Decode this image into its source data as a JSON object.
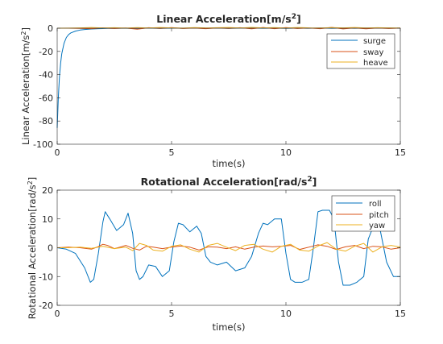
{
  "chart_data": [
    {
      "type": "line",
      "title": "Linear Acceleration[m/s",
      "title_sup": "2",
      "title_end": "]",
      "xlabel": "time(s)",
      "ylabel": "Linear Acceleration[m/s",
      "ylabel_sup": "2",
      "ylabel_end": "]",
      "xlim": [
        0,
        15
      ],
      "ylim": [
        -100,
        0
      ],
      "xticks": [
        "0",
        "5",
        "10",
        "15"
      ],
      "yticks": [
        "-100",
        "-80",
        "-60",
        "-40",
        "-20",
        "0"
      ],
      "legend_placement": "top-right",
      "grid": false,
      "series": [
        {
          "name": "surge",
          "color": "#0072BD",
          "x": [
            0,
            0.05,
            0.1,
            0.15,
            0.2,
            0.3,
            0.4,
            0.5,
            0.6,
            0.8,
            1.0,
            1.2,
            1.5,
            1.8,
            2.2,
            2.6,
            3.0,
            3.5,
            4.0,
            4.5,
            5.0,
            5.5,
            6.0,
            6.5,
            7.0,
            7.5,
            8.0,
            8.5,
            9.0,
            9.5,
            10.0,
            10.5,
            11.0,
            11.5,
            12.0,
            12.5,
            13.0,
            13.5,
            14.0,
            14.5,
            15.0
          ],
          "y": [
            -86,
            -60,
            -42,
            -30,
            -22,
            -13,
            -8,
            -5.5,
            -4,
            -2.5,
            -1.6,
            -1.1,
            -0.7,
            -0.4,
            -0.2,
            -0.1,
            -0.1,
            -0.3,
            0.1,
            -0.2,
            0.1,
            -0.1,
            0.2,
            -0.1,
            0.1,
            -0.2,
            0.1,
            0.2,
            -0.1,
            0.1,
            -0.2,
            0.1,
            -0.1,
            0.2,
            -0.1,
            0.1,
            -0.1,
            0.1,
            0,
            0.1,
            0
          ]
        },
        {
          "name": "sway",
          "color": "#D95319",
          "x": [
            0,
            0.5,
            1.0,
            1.5,
            2.0,
            2.5,
            3.0,
            3.5,
            4.0,
            4.5,
            5.0,
            5.5,
            6.0,
            6.5,
            7.0,
            7.5,
            8.0,
            8.5,
            9.0,
            9.5,
            10.0,
            10.5,
            11.0,
            11.5,
            12.0,
            12.5,
            13.0,
            13.5,
            14.0,
            14.5,
            15.0
          ],
          "y": [
            0,
            0,
            -0.2,
            -0.4,
            0.3,
            -0.3,
            0.2,
            -0.8,
            0.4,
            -0.2,
            0.5,
            -0.3,
            0.2,
            -0.4,
            0.3,
            -0.2,
            0.4,
            -0.5,
            0.6,
            -0.4,
            0.5,
            -0.3,
            0.2,
            -0.4,
            0.7,
            -0.6,
            0.3,
            -0.5,
            0.2,
            -0.3,
            0.1
          ]
        },
        {
          "name": "heave",
          "color": "#EDB120",
          "x": [
            0,
            0.5,
            1.0,
            1.5,
            2.0,
            2.5,
            3.0,
            3.5,
            4.0,
            4.5,
            5.0,
            5.5,
            6.0,
            6.5,
            7.0,
            7.5,
            8.0,
            8.5,
            9.0,
            9.5,
            10.0,
            10.5,
            11.0,
            11.5,
            12.0,
            12.5,
            13.0,
            13.5,
            14.0,
            14.5,
            15.0
          ],
          "y": [
            0,
            0.1,
            0.3,
            0.6,
            0.2,
            0.4,
            0.1,
            0.5,
            0.2,
            0.6,
            0.3,
            0.1,
            0.5,
            0.2,
            0.4,
            0.6,
            0.2,
            0.7,
            0.3,
            0.5,
            0.1,
            0.6,
            0.3,
            0.2,
            0.5,
            0.3,
            0.6,
            0.2,
            0.4,
            0.3,
            0.2
          ]
        }
      ]
    },
    {
      "type": "line",
      "title": "Rotational Acceleration[rad/s",
      "title_sup": "2",
      "title_end": "]",
      "xlabel": "time(s)",
      "ylabel": "Rotational Acceleration[rad/s",
      "ylabel_sup": "2",
      "ylabel_end": "]",
      "xlim": [
        0,
        15
      ],
      "ylim": [
        -20,
        20
      ],
      "xticks": [
        "0",
        "5",
        "10",
        "15"
      ],
      "yticks": [
        "-20",
        "-10",
        "0",
        "10",
        "20"
      ],
      "legend_placement": "top-right",
      "grid": false,
      "series": [
        {
          "name": "roll",
          "color": "#0072BD",
          "x": [
            0,
            0.4,
            0.8,
            1.2,
            1.45,
            1.6,
            1.8,
            2.0,
            2.1,
            2.3,
            2.6,
            2.9,
            3.1,
            3.3,
            3.45,
            3.6,
            3.75,
            4.0,
            4.3,
            4.6,
            4.9,
            5.1,
            5.3,
            5.5,
            5.8,
            6.1,
            6.3,
            6.5,
            6.7,
            7.0,
            7.4,
            7.8,
            8.2,
            8.5,
            8.8,
            9.0,
            9.2,
            9.5,
            9.8,
            10.0,
            10.2,
            10.4,
            10.7,
            11.0,
            11.2,
            11.4,
            11.6,
            11.9,
            12.1,
            12.3,
            12.5,
            12.8,
            13.1,
            13.4,
            13.6,
            13.8,
            14.1,
            14.4,
            14.7,
            15.0
          ],
          "y": [
            0,
            -0.5,
            -2,
            -7,
            -12,
            -11,
            -2,
            9,
            12.5,
            10,
            6,
            8,
            12,
            5,
            -8,
            -11,
            -10,
            -6,
            -6.5,
            -10,
            -8,
            2,
            8.5,
            8,
            5.5,
            7.5,
            5,
            -3,
            -5,
            -6,
            -5,
            -8,
            -7,
            -3,
            5,
            8.5,
            8,
            10,
            10,
            -2,
            -11,
            -12,
            -12,
            -11,
            0,
            12.5,
            13,
            13,
            10,
            -5,
            -13,
            -13,
            -12,
            -10,
            3,
            7,
            7,
            -5,
            -10,
            -10
          ]
        },
        {
          "name": "pitch",
          "color": "#D95319",
          "x": [
            0,
            0.5,
            1.0,
            1.5,
            1.8,
            2.0,
            2.2,
            2.5,
            2.8,
            3.0,
            3.3,
            3.6,
            3.9,
            4.2,
            4.6,
            5.0,
            5.4,
            5.8,
            6.2,
            6.6,
            7.0,
            7.4,
            7.8,
            8.2,
            8.6,
            9.0,
            9.4,
            9.8,
            10.2,
            10.6,
            11.0,
            11.4,
            11.8,
            12.2,
            12.6,
            13.0,
            13.4,
            13.8,
            14.2,
            14.6,
            15.0
          ],
          "y": [
            0,
            0.2,
            0,
            -0.5,
            0.4,
            1.2,
            0.8,
            -0.3,
            0.3,
            0.8,
            -0.2,
            -0.8,
            0.5,
            0.2,
            -0.3,
            0.2,
            0.6,
            0.2,
            -0.8,
            0.3,
            0.2,
            -0.3,
            0.3,
            -0.5,
            0.2,
            0.6,
            0.3,
            0.5,
            0.8,
            -0.6,
            0.2,
            1.0,
            0.5,
            -0.6,
            0.3,
            0.8,
            -0.3,
            0.5,
            0.3,
            -0.5,
            0
          ]
        },
        {
          "name": "yaw",
          "color": "#EDB120",
          "x": [
            0,
            0.5,
            1.0,
            1.5,
            2.0,
            2.5,
            3.0,
            3.3,
            3.6,
            3.9,
            4.2,
            4.6,
            5.0,
            5.4,
            5.8,
            6.2,
            6.6,
            7.0,
            7.4,
            7.8,
            8.2,
            8.6,
            9.0,
            9.4,
            9.8,
            10.2,
            10.6,
            11.0,
            11.4,
            11.8,
            12.2,
            12.6,
            13.0,
            13.4,
            13.8,
            14.2,
            14.6,
            15.0
          ],
          "y": [
            0,
            0,
            0.2,
            -0.2,
            0.5,
            -0.3,
            0.2,
            -1.0,
            1.5,
            0.8,
            -0.8,
            -1.2,
            0.5,
            1.0,
            -0.5,
            -1.5,
            0.8,
            1.5,
            0.2,
            -1.0,
            0.8,
            1.2,
            -0.5,
            -1.5,
            0.5,
            1.2,
            -0.8,
            -1.2,
            0.6,
            1.8,
            -0.5,
            -1.2,
            0.5,
            1.5,
            -1.5,
            0.3,
            0.8,
            0.2
          ]
        }
      ]
    }
  ]
}
